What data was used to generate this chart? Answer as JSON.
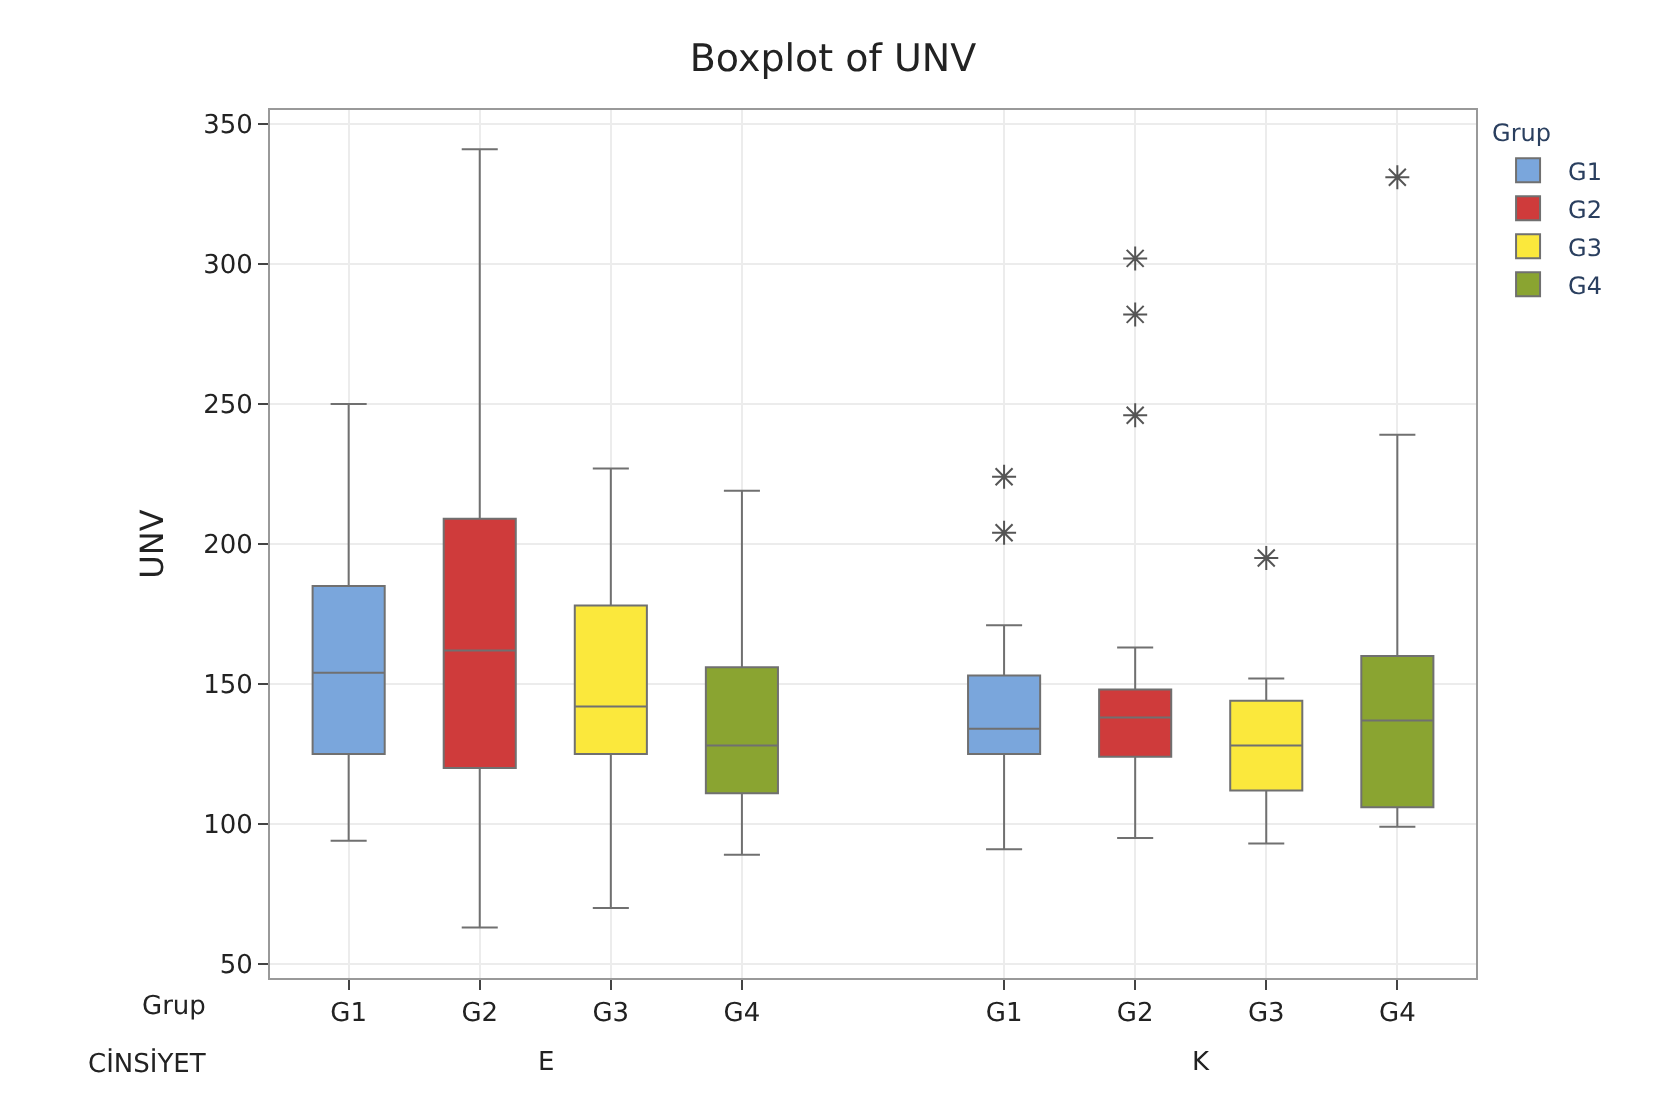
{
  "chart_data": {
    "type": "box",
    "title": "Boxplot of UNV",
    "ylabel": "UNV",
    "legend_title": "Grup",
    "categories": [
      "G1",
      "G2",
      "G3",
      "G4",
      "G1",
      "G2",
      "G3",
      "G4"
    ],
    "annotations": [
      "Grup",
      "CİNSİYET",
      "E",
      "K"
    ],
    "ylim": [
      45,
      355
    ],
    "yticks": [
      50,
      100,
      150,
      200,
      250,
      300,
      350
    ],
    "grid": true,
    "legend": "top right",
    "series": [
      {
        "name": "G1",
        "color": "#7aa6dc",
        "boxes": [
          {
            "low": 94,
            "q1": 125,
            "median": 154,
            "q3": 185,
            "high": 250
          },
          null,
          null,
          null,
          {
            "low": 91,
            "q1": 125,
            "median": 134,
            "q3": 153,
            "high": 171,
            "outliers": [
              224,
              204
            ]
          },
          null,
          null,
          null
        ]
      },
      {
        "name": "G2",
        "color": "#cf3b3b",
        "boxes": [
          null,
          {
            "low": 63,
            "q1": 120,
            "median": 162,
            "q3": 209,
            "high": 341
          },
          null,
          null,
          null,
          {
            "low": 95,
            "q1": 124,
            "median": 138,
            "q3": 148,
            "high": 163,
            "outliers": [
              302,
              282,
              246
            ]
          },
          null,
          null
        ]
      },
      {
        "name": "G3",
        "color": "#fbe83c",
        "boxes": [
          null,
          null,
          {
            "low": 70,
            "q1": 125,
            "median": 142,
            "q3": 178,
            "high": 227
          },
          null,
          null,
          null,
          {
            "low": 93,
            "q1": 112,
            "median": 128,
            "q3": 144,
            "high": 152,
            "outliers": [
              195
            ]
          },
          null
        ]
      },
      {
        "name": "G4",
        "color": "#8aa431",
        "boxes": [
          null,
          null,
          null,
          {
            "low": 89,
            "q1": 111,
            "median": 128,
            "q3": 156,
            "high": 219
          },
          null,
          null,
          null,
          {
            "low": 99,
            "q1": 106,
            "median": 137,
            "q3": 160,
            "high": 239,
            "outliers": [
              331
            ]
          }
        ]
      }
    ]
  }
}
